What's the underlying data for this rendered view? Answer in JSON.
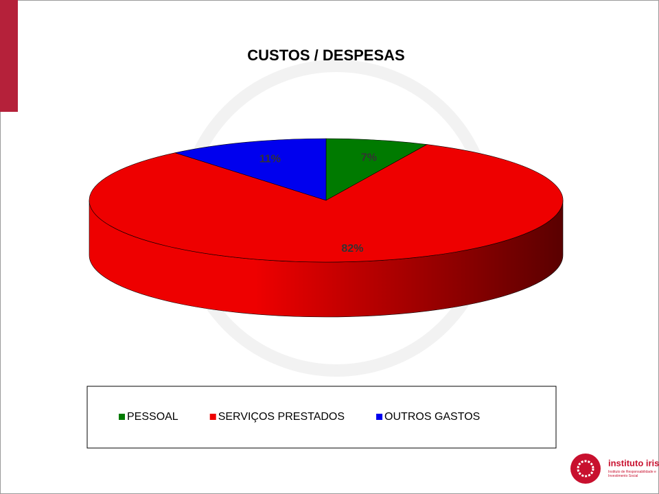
{
  "chart_data": {
    "type": "pie",
    "title": "CUSTOS / DESPESAS",
    "categories": [
      "PESSOAL",
      "SERVIÇOS PRESTADOS",
      "OUTROS GASTOS"
    ],
    "values": [
      7,
      82,
      11
    ],
    "value_labels": [
      "7%",
      "82%",
      "11%"
    ],
    "colors": [
      "#007a00",
      "#ee0000",
      "#0000ee"
    ],
    "legend": "bottom"
  },
  "logo": {
    "name": "instituto iris",
    "tagline": "Instituto de Responsabilidade e Investimento Social"
  }
}
